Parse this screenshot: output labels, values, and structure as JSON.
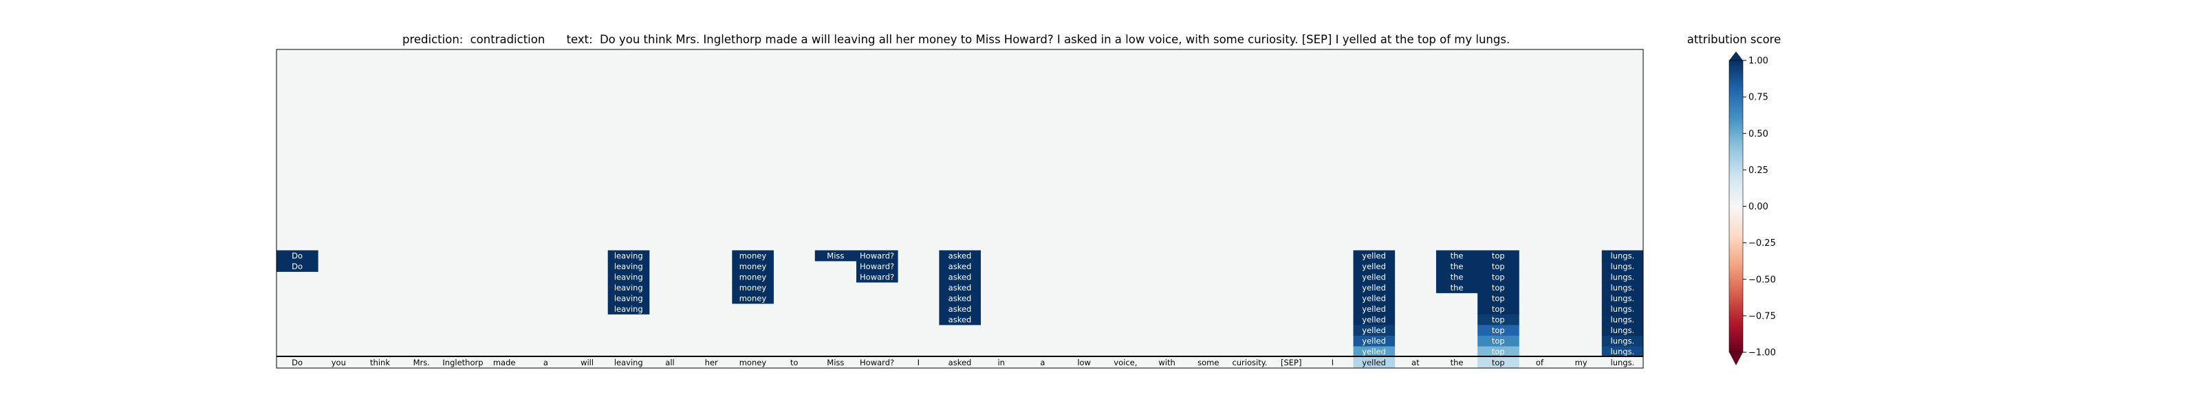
{
  "chart_data": {
    "type": "heatmap",
    "title_prediction_label": "prediction:",
    "title_prediction_value": "contradiction",
    "title_text_label": "text:",
    "title_text_value": "Do you think Mrs. Inglethorp made a will leaving all her money to Miss Howard? I asked in a low voice, with some curiosity. [SEP] I yelled at the top of my lungs.",
    "tokens": [
      "Do",
      "you",
      "think",
      "Mrs.",
      "Inglethorp",
      "made",
      "a",
      "will",
      "leaving",
      "all",
      "her",
      "money",
      "to",
      "Miss",
      "Howard?",
      "I",
      "asked",
      "in",
      "a",
      "low",
      "voice,",
      "with",
      "some",
      "curiosity.",
      "[SEP]",
      "I",
      "yelled",
      "at",
      "the",
      "top",
      "of",
      "my",
      "lungs."
    ],
    "n_layers": 12,
    "columns": [
      {
        "token_index": 0,
        "scores": [
          0,
          0,
          0,
          0,
          0,
          0,
          0,
          0,
          0,
          1.0,
          1.0,
          0
        ]
      },
      {
        "token_index": 8,
        "scores": [
          0,
          0,
          0,
          0,
          0,
          1.0,
          1.0,
          1.0,
          1.0,
          1.0,
          1.0,
          0
        ]
      },
      {
        "token_index": 11,
        "scores": [
          0,
          0,
          0,
          0,
          0,
          0,
          1.0,
          1.0,
          1.0,
          1.0,
          1.0,
          0
        ]
      },
      {
        "token_index": 13,
        "scores": [
          0,
          0,
          0,
          0,
          0,
          0,
          0,
          0,
          0,
          0,
          1.0,
          0
        ]
      },
      {
        "token_index": 14,
        "scores": [
          0,
          0,
          0,
          0,
          0,
          0,
          0,
          0,
          1.0,
          1.0,
          1.0,
          0
        ]
      },
      {
        "token_index": 16,
        "scores": [
          0,
          0,
          0,
          0,
          1.0,
          1.0,
          1.0,
          1.0,
          1.0,
          1.0,
          1.0,
          0
        ]
      },
      {
        "token_index": 26,
        "scores": [
          0.3,
          0.55,
          0.85,
          0.95,
          1.0,
          1.0,
          1.0,
          1.0,
          1.0,
          1.0,
          1.0,
          0
        ]
      },
      {
        "token_index": 28,
        "scores": [
          0,
          0,
          0,
          0,
          0,
          0,
          0,
          1.0,
          1.0,
          1.0,
          1.0,
          0
        ]
      },
      {
        "token_index": 29,
        "scores": [
          0.25,
          0.45,
          0.65,
          0.8,
          0.95,
          1.0,
          1.0,
          1.0,
          1.0,
          1.0,
          1.0,
          0
        ]
      },
      {
        "token_index": 32,
        "scores": [
          0,
          0.9,
          0.95,
          1.0,
          1.0,
          1.0,
          1.0,
          1.0,
          1.0,
          1.0,
          1.0,
          0
        ]
      }
    ],
    "colorbar": {
      "label": "attribution score",
      "range": [
        -1,
        1
      ],
      "ticks": [
        1.0,
        0.75,
        0.5,
        0.25,
        0.0,
        -0.25,
        -0.5,
        -0.75,
        -1.0
      ],
      "tick_labels": [
        "1.00",
        "0.75",
        "0.50",
        "0.25",
        "0.00",
        "−0.25",
        "−0.50",
        "−0.75",
        "−1.00"
      ],
      "colormap": "RdBu"
    },
    "background_color": "#f4f6f6",
    "grid": false
  }
}
